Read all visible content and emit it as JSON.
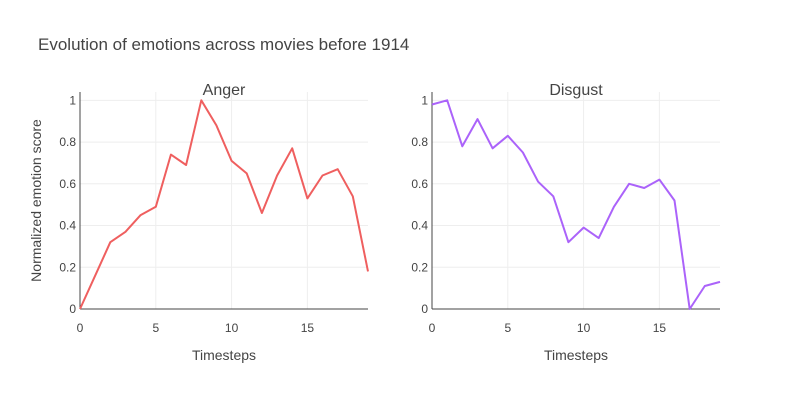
{
  "title": "Evolution of emotions across movies before 1914",
  "chart_data": [
    {
      "type": "line",
      "title": "Anger",
      "xlabel": "Timesteps",
      "ylabel": "Normalized emotion score",
      "xlim": [
        0,
        19
      ],
      "ylim": [
        0,
        1.04
      ],
      "x_ticks": [
        0,
        5,
        10,
        15
      ],
      "y_ticks": [
        0,
        0.2,
        0.4,
        0.6,
        0.8,
        1
      ],
      "x_tick_labels": [
        "0",
        "5",
        "10",
        "15"
      ],
      "y_tick_labels": [
        "0",
        "0.2",
        "0.4",
        "0.6",
        "0.8",
        "1"
      ],
      "color": "#ef5f5f",
      "x": [
        0,
        1,
        2,
        3,
        4,
        5,
        6,
        7,
        8,
        9,
        10,
        11,
        12,
        13,
        14,
        15,
        16,
        17,
        18,
        19
      ],
      "values": [
        0,
        0.16,
        0.32,
        0.37,
        0.45,
        0.49,
        0.74,
        0.69,
        1.0,
        0.88,
        0.71,
        0.65,
        0.46,
        0.64,
        0.77,
        0.53,
        0.64,
        0.67,
        0.54,
        0.18
      ]
    },
    {
      "type": "line",
      "title": "Disgust",
      "xlabel": "Timesteps",
      "ylabel": "",
      "xlim": [
        0,
        19
      ],
      "ylim": [
        0,
        1.04
      ],
      "x_ticks": [
        0,
        5,
        10,
        15
      ],
      "y_ticks": [
        0,
        0.2,
        0.4,
        0.6,
        0.8,
        1
      ],
      "x_tick_labels": [
        "0",
        "5",
        "10",
        "15"
      ],
      "y_tick_labels": [
        "0",
        "0.2",
        "0.4",
        "0.6",
        "0.8",
        "1"
      ],
      "color": "#ab63fa",
      "x": [
        0,
        1,
        2,
        3,
        4,
        5,
        6,
        7,
        8,
        9,
        10,
        11,
        12,
        13,
        14,
        15,
        16,
        17,
        18,
        19
      ],
      "values": [
        0.98,
        1.0,
        0.78,
        0.91,
        0.77,
        0.83,
        0.75,
        0.61,
        0.54,
        0.32,
        0.39,
        0.34,
        0.49,
        0.6,
        0.58,
        0.62,
        0.52,
        0.0,
        0.11,
        0.13
      ]
    }
  ]
}
